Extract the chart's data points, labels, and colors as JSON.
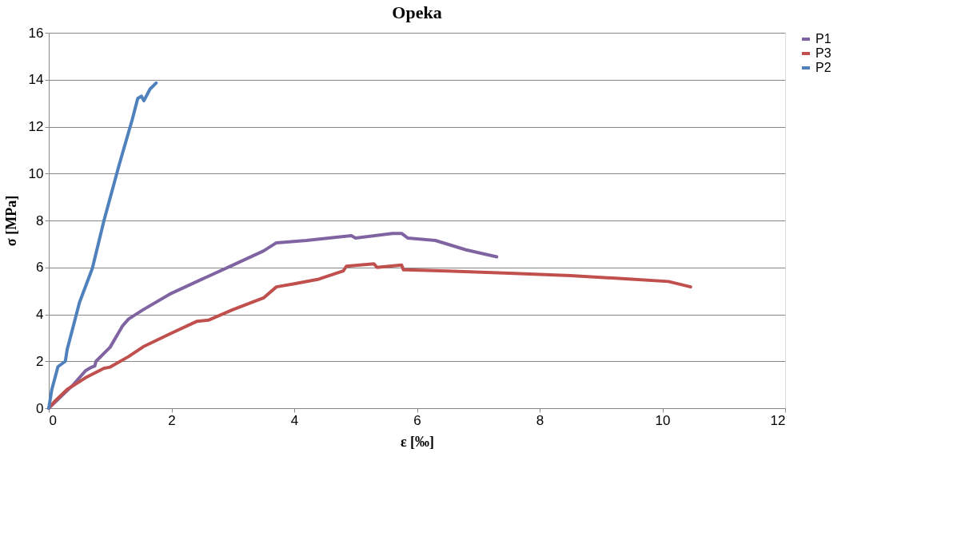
{
  "chart_data": {
    "type": "line",
    "title": "Opeka",
    "xlabel": "ε [‰]",
    "ylabel": "σ [MPa]",
    "xlim": [
      0,
      12
    ],
    "xticks": [
      0,
      2,
      4,
      6,
      8,
      10,
      12
    ],
    "ylim": [
      0,
      16
    ],
    "yticks": [
      0,
      2,
      4,
      6,
      8,
      10,
      12,
      14,
      16
    ],
    "grid": "y",
    "legend": "right",
    "marker": "none",
    "line_style": "solid",
    "series": [
      {
        "name": "P1",
        "color": "#8064a2",
        "x": [
          0,
          0.2,
          0.4,
          0.6,
          0.7,
          0.75,
          0.77,
          1.0,
          1.2,
          1.3,
          1.54,
          2.0,
          2.5,
          3.0,
          3.5,
          3.71,
          4.2,
          4.93,
          5.0,
          5.6,
          5.75,
          5.85,
          6.3,
          6.8,
          7.3
        ],
        "values": [
          0,
          0.5,
          1.0,
          1.6,
          1.75,
          1.8,
          2.0,
          2.6,
          3.5,
          3.8,
          4.2,
          4.9,
          5.5,
          6.1,
          6.7,
          7.05,
          7.15,
          7.35,
          7.25,
          7.45,
          7.45,
          7.25,
          7.15,
          6.75,
          6.45
        ]
      },
      {
        "name": "P3",
        "color": "#c0504d",
        "x": [
          0,
          0.1,
          0.3,
          0.6,
          0.9,
          1.0,
          1.3,
          1.54,
          2.0,
          2.41,
          2.6,
          3.0,
          3.5,
          3.71,
          4.0,
          4.4,
          4.8,
          4.85,
          5.3,
          5.35,
          5.75,
          5.78,
          6.5,
          7.5,
          8.5,
          9.5,
          10.1,
          10.46
        ],
        "values": [
          0,
          0.3,
          0.8,
          1.3,
          1.7,
          1.75,
          2.2,
          2.62,
          3.2,
          3.7,
          3.75,
          4.2,
          4.7,
          5.17,
          5.3,
          5.5,
          5.85,
          6.05,
          6.15,
          6.0,
          6.1,
          5.9,
          5.85,
          5.75,
          5.65,
          5.5,
          5.4,
          5.17
        ]
      },
      {
        "name": "P2",
        "color": "#4f81bd",
        "x": [
          0,
          0.05,
          0.15,
          0.27,
          0.3,
          0.4,
          0.5,
          0.71,
          0.9,
          1.15,
          1.25,
          1.36,
          1.45,
          1.51,
          1.55,
          1.65,
          1.75
        ],
        "values": [
          0,
          0.8,
          1.77,
          2.0,
          2.5,
          3.5,
          4.5,
          5.96,
          8.0,
          10.4,
          11.3,
          12.3,
          13.2,
          13.3,
          13.1,
          13.6,
          13.86
        ]
      }
    ]
  }
}
